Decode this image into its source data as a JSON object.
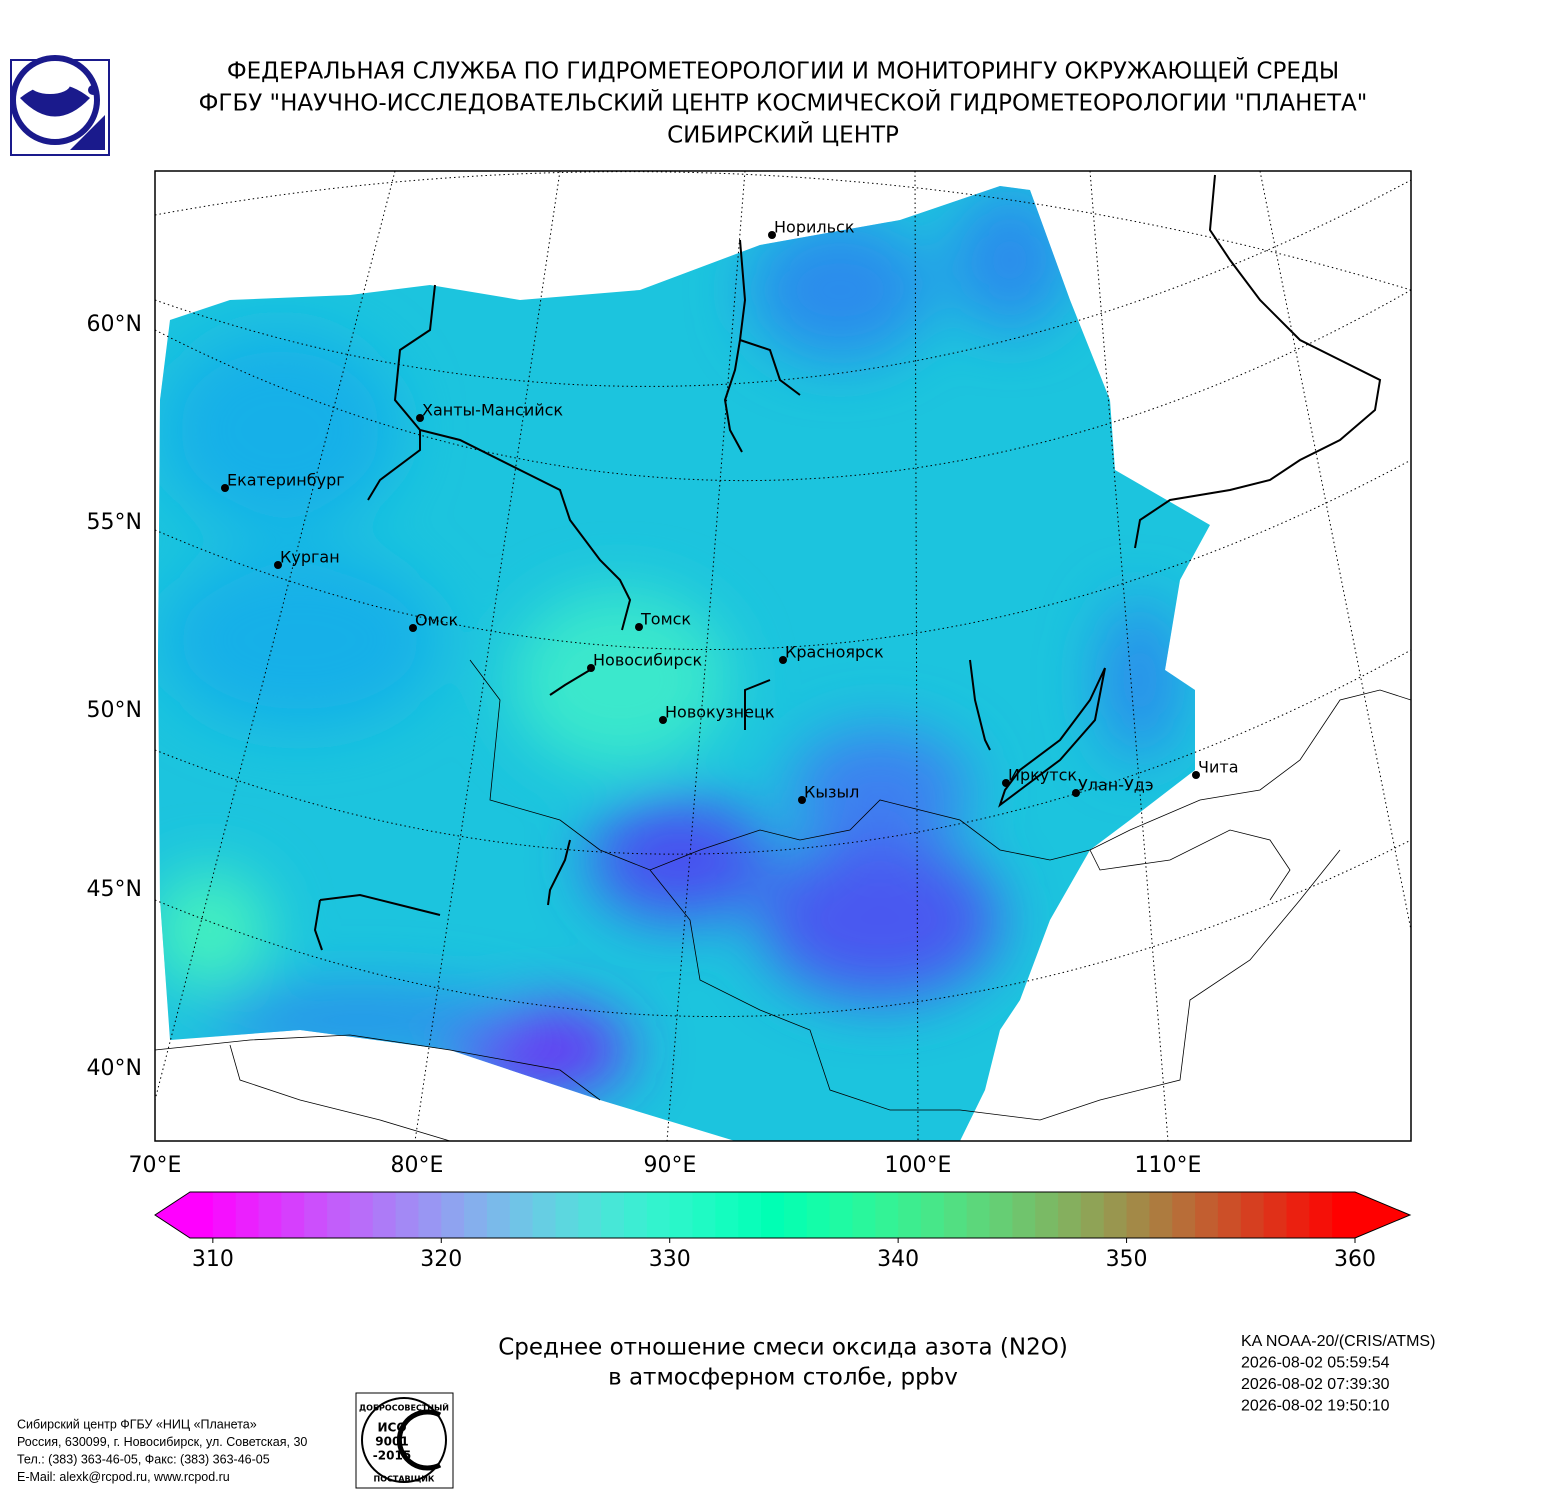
{
  "header": {
    "lines": [
      "ФЕДЕРАЛЬНАЯ СЛУЖБА ПО ГИДРОМЕТЕОРОЛОГИИ И МОНИТОРИНГУ ОКРУЖАЮЩЕЙ СРЕДЫ",
      "ФГБУ \"НАУЧНО-ИССЛЕДОВАТЕЛЬСКИЙ ЦЕНТР КОСМИЧЕСКОЙ ГИДРОМЕТЕОРОЛОГИИ \"ПЛАНЕТА\"",
      "СИБИРСКИЙ ЦЕНТР"
    ]
  },
  "map": {
    "lat_labels": [
      "60°N",
      "55°N",
      "50°N",
      "45°N",
      "40°N"
    ],
    "lon_labels": [
      "70°E",
      "80°E",
      "90°E",
      "100°E",
      "110°E"
    ],
    "cities": [
      "Норильск",
      "Ханты-Мансийск",
      "Екатеринбург",
      "Курган",
      "Омск",
      "Томск",
      "Новосибирск",
      "Красноярск",
      "Новокузнецк",
      "Кызыл",
      "Иркутск",
      "Улан-Удэ",
      "Чита"
    ]
  },
  "colorbar": {
    "range": [
      309,
      360
    ],
    "ticks": [
      310,
      320,
      330,
      340,
      350,
      360
    ],
    "colormap": "rainbow"
  },
  "caption": [
    "Среднее отношение смеси оксида азота (N2O)",
    "в атмосферном столбе, ppbv"
  ],
  "satellite": [
    "KA NOAA-20/(CRIS/ATMS)",
    "2026-08-02 05:59:54",
    "2026-08-02 07:39:30",
    "2026-08-02 19:50:10"
  ],
  "footer": [
    "Сибирский центр ФГБУ «НИЦ «Планета»",
    "Россия, 630099, г. Новосибирск, ул. Советская, 30",
    "Тел.: (383) 363-46-05, Факс: (383) 363-46-05",
    "E-Mail: alexk@rcpod.ru, www.rcpod.ru"
  ],
  "iso_logo": [
    "ДОБРОСОВЕСТНЫЙ",
    "ИСО",
    "9001",
    "-2015",
    "ПОСТАВЩИК"
  ]
}
